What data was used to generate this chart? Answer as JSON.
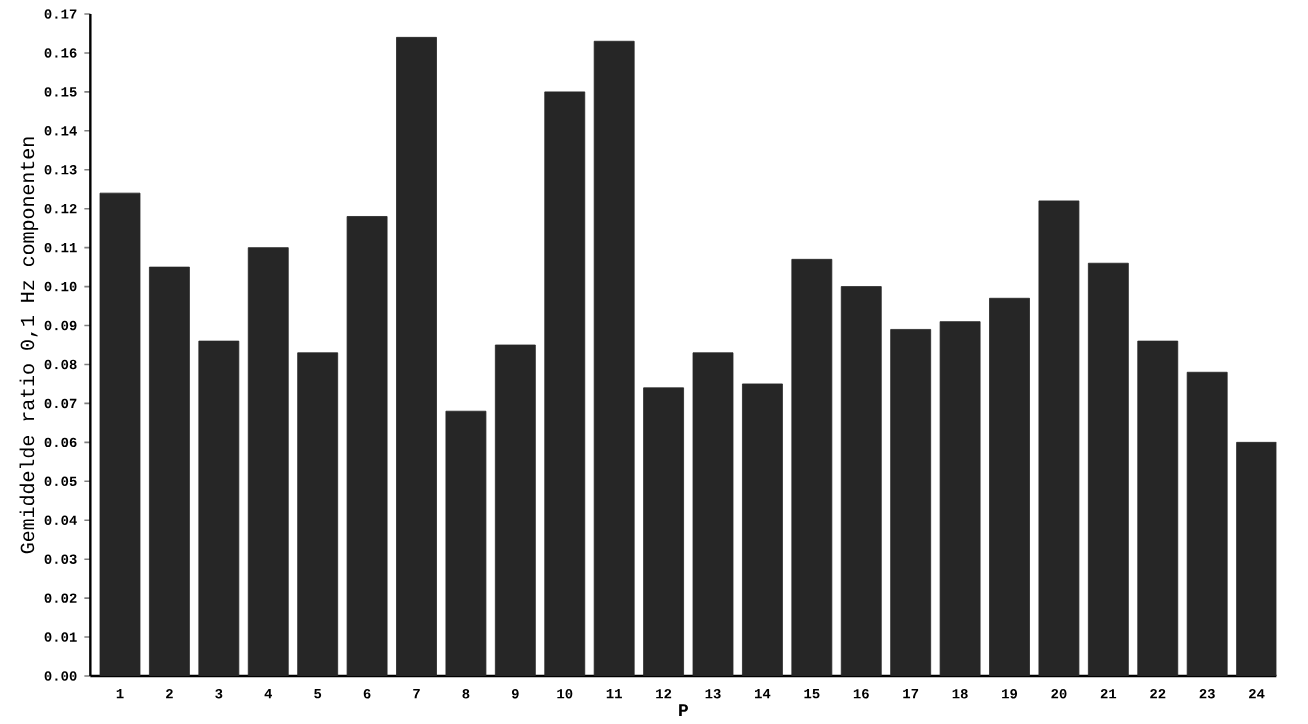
{
  "chart_data": {
    "type": "bar",
    "xlabel": "P",
    "ylabel": "Gemiddelde   ratio 0,1 Hz componenten",
    "categories": [
      "1",
      "2",
      "3",
      "4",
      "5",
      "6",
      "7",
      "8",
      "9",
      "10",
      "11",
      "12",
      "13",
      "14",
      "15",
      "16",
      "17",
      "18",
      "19",
      "20",
      "21",
      "22",
      "23",
      "24"
    ],
    "values": [
      0.124,
      0.105,
      0.086,
      0.11,
      0.083,
      0.118,
      0.164,
      0.068,
      0.085,
      0.15,
      0.163,
      0.074,
      0.083,
      0.075,
      0.107,
      0.1,
      0.089,
      0.091,
      0.097,
      0.122,
      0.106,
      0.086,
      0.078,
      0.06
    ],
    "color": "#262626",
    "ylim": [
      0,
      0.17
    ],
    "yticks": [
      {
        "value": 0,
        "label": "0.00"
      },
      {
        "value": 0.01,
        "label": "0.01"
      },
      {
        "value": 0.02,
        "label": "0.02"
      },
      {
        "value": 0.03,
        "label": "0.03"
      },
      {
        "value": 0.04,
        "label": "0.04"
      },
      {
        "value": 0.05,
        "label": "0.05"
      },
      {
        "value": 0.06,
        "label": "0.06"
      },
      {
        "value": 0.07,
        "label": "0.07"
      },
      {
        "value": 0.08,
        "label": "0.08"
      },
      {
        "value": 0.09,
        "label": "0.09"
      },
      {
        "value": 0.1,
        "label": "0.10"
      },
      {
        "value": 0.11,
        "label": "0.11"
      },
      {
        "value": 0.12,
        "label": "0.12"
      },
      {
        "value": 0.13,
        "label": "0.13"
      },
      {
        "value": 0.14,
        "label": "0.14"
      },
      {
        "value": 0.15,
        "label": "0.15"
      },
      {
        "value": 0.16,
        "label": "0.16"
      },
      {
        "value": 0.17,
        "label": "0.17"
      }
    ],
    "grid": false
  }
}
